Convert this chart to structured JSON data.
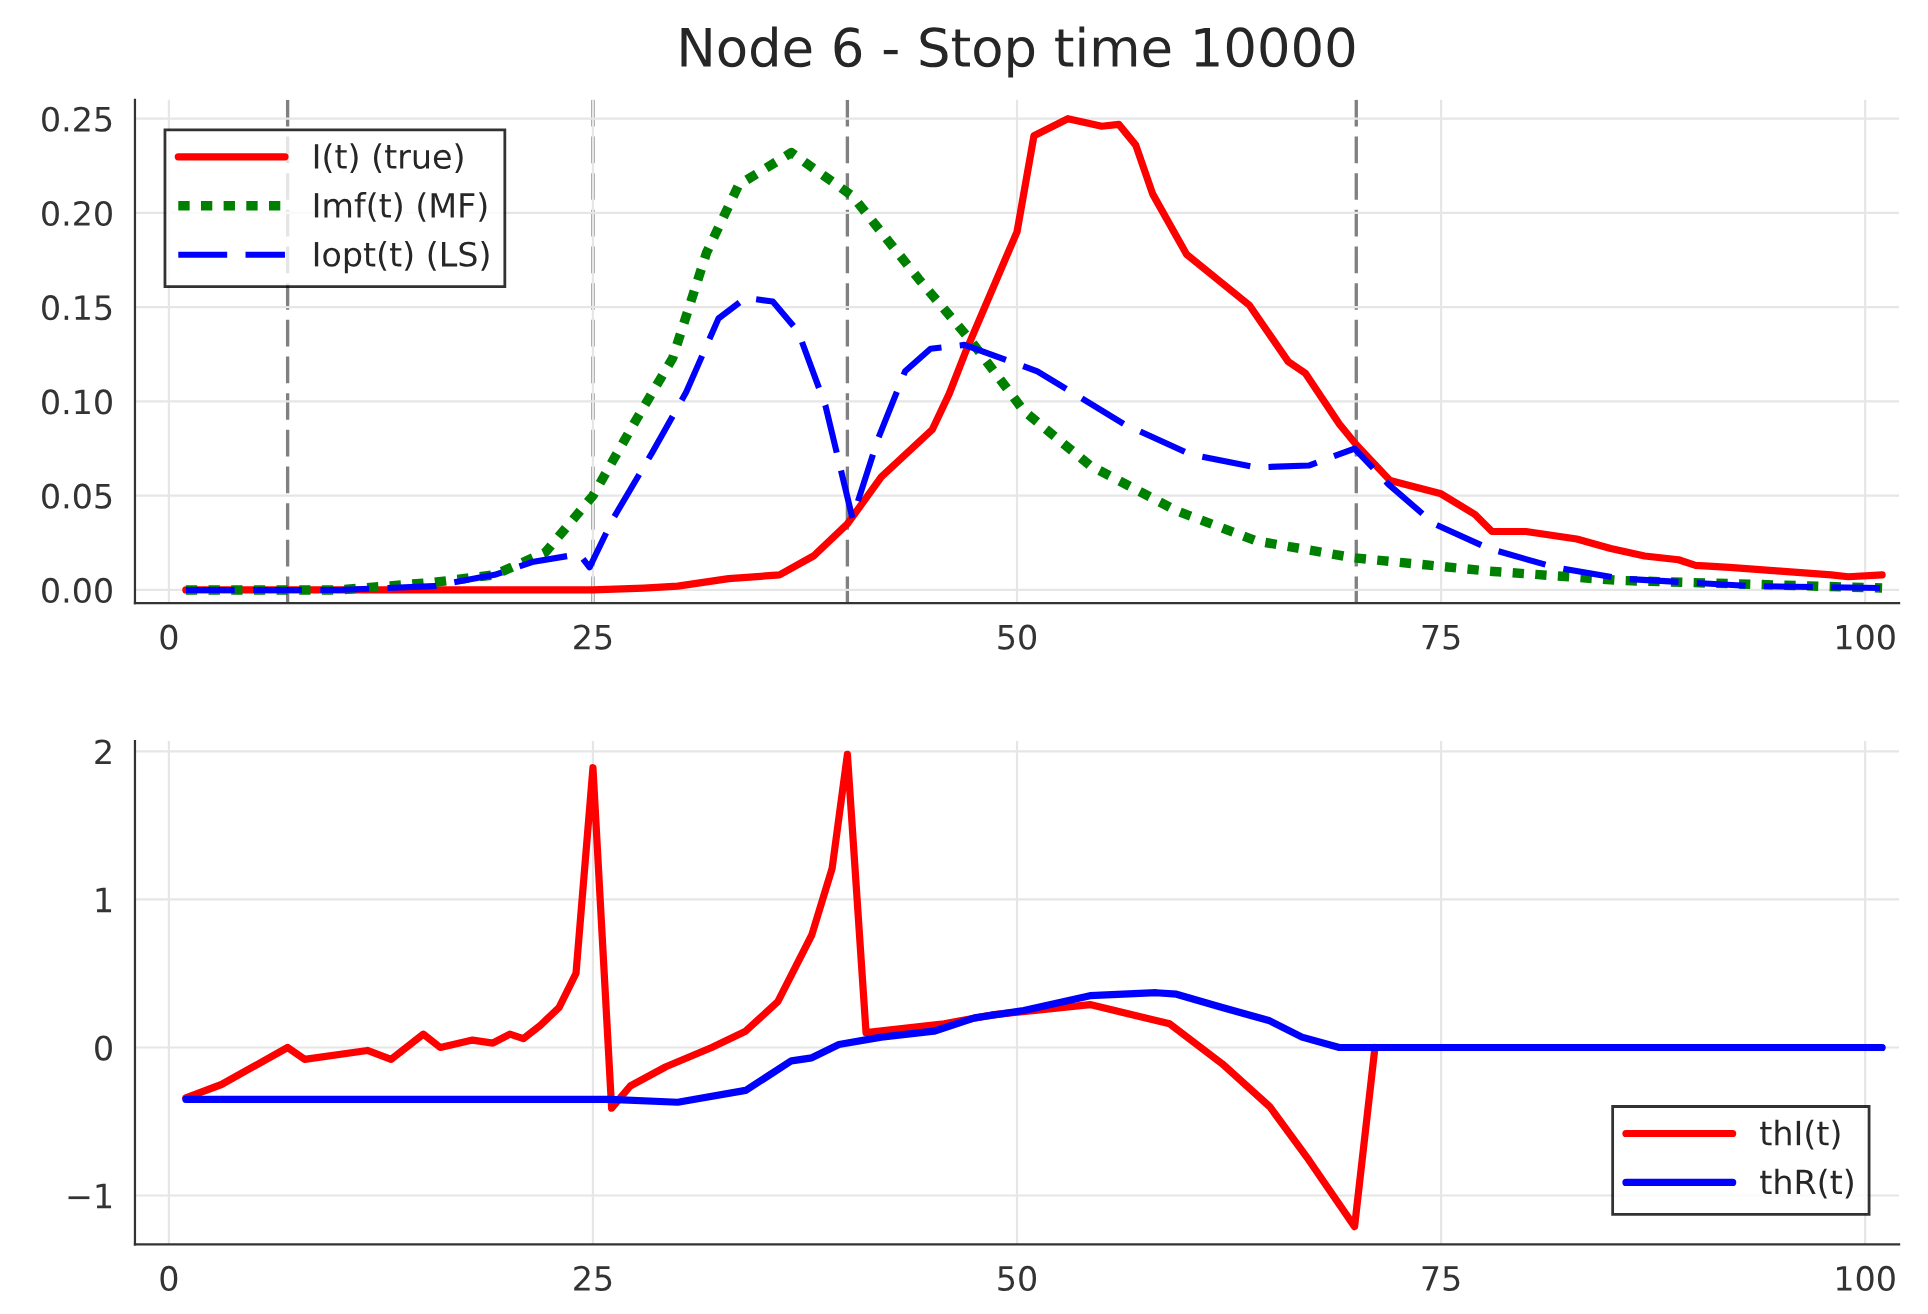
{
  "chart_data": [
    {
      "type": "line",
      "title": "Node 6 - Stop time 10000",
      "xlim": [
        -2,
        102
      ],
      "ylim": [
        -0.007,
        0.26
      ],
      "xticks": [
        0,
        25,
        50,
        75,
        100
      ],
      "yticks": [
        {
          "value": 0,
          "label": "0.00"
        },
        {
          "value": 0.05,
          "label": "0.05"
        },
        {
          "value": 0.1,
          "label": "0.10"
        },
        {
          "value": 0.15,
          "label": "0.15"
        },
        {
          "value": 0.2,
          "label": "0.20"
        },
        {
          "value": 0.25,
          "label": "0.25"
        }
      ],
      "grid": true,
      "legend": "top left",
      "marker": "none",
      "ref_lines": [
        {
          "axis": "x",
          "value": 7,
          "label": null,
          "color": "#808080",
          "line_style": "dashed"
        },
        {
          "axis": "x",
          "value": 25,
          "label": null,
          "color": "#808080",
          "line_style": "dashed"
        },
        {
          "axis": "x",
          "value": 40,
          "label": null,
          "color": "#808080",
          "line_style": "dashed"
        },
        {
          "axis": "x",
          "value": 70,
          "label": null,
          "color": "#808080",
          "line_style": "dashed"
        }
      ],
      "series": [
        {
          "name": "I(t) (true)",
          "color": "#ff0000",
          "line_style": "solid",
          "x": [
            1,
            10,
            20,
            25,
            28,
            30,
            33,
            36,
            38,
            40,
            42,
            45,
            46,
            47,
            50,
            51,
            53,
            55,
            56,
            57,
            58,
            60,
            63.7,
            66,
            67,
            69,
            70,
            72,
            75,
            77,
            78,
            80,
            83,
            85,
            87,
            89,
            90,
            92,
            95,
            98,
            99,
            101
          ],
          "values": [
            0,
            0,
            0,
            0,
            0.001,
            0.002,
            0.006,
            0.008,
            0.018,
            0.035,
            0.06,
            0.085,
            0.104,
            0.127,
            0.19,
            0.241,
            0.25,
            0.246,
            0.247,
            0.236,
            0.21,
            0.178,
            0.151,
            0.121,
            0.115,
            0.088,
            0.077,
            0.058,
            0.051,
            0.04,
            0.031,
            0.031,
            0.027,
            0.022,
            0.018,
            0.016,
            0.013,
            0.012,
            0.01,
            0.008,
            0.007,
            0.008
          ]
        },
        {
          "name": "Imf(t) (MF)",
          "color": "#008000",
          "line_style": "dotted",
          "x": [
            1,
            10,
            15.6,
            19.2,
            22.2,
            25,
            27.4,
            29.7,
            31.7,
            33.6,
            36.7,
            40.3,
            44.2,
            47.3,
            50.4,
            54.3,
            59.4,
            64.1,
            69.9,
            77.8,
            85.6,
            101
          ],
          "values": [
            0,
            0,
            0.004,
            0.008,
            0.02,
            0.05,
            0.088,
            0.123,
            0.179,
            0.215,
            0.232,
            0.209,
            0.165,
            0.132,
            0.095,
            0.066,
            0.042,
            0.026,
            0.017,
            0.01,
            0.005,
            0.001
          ]
        },
        {
          "name": "Iopt(t) (LS)",
          "color": "#0000ff",
          "line_style": "dashed",
          "x": [
            1,
            10,
            15.6,
            19.2,
            21.5,
            24.2,
            24.8,
            26.2,
            28.5,
            30.5,
            32.4,
            34,
            35.6,
            37.1,
            38.7,
            40.3,
            41.8,
            43.4,
            44.9,
            46.9,
            51.2,
            56.3,
            60.2,
            64.1,
            67.2,
            69.9,
            71.9,
            74.6,
            77.8,
            81.7,
            85.6,
            93.4,
            101
          ],
          "values": [
            0,
            0,
            0.002,
            0.008,
            0.015,
            0.019,
            0.012,
            0.038,
            0.073,
            0.105,
            0.144,
            0.155,
            0.153,
            0.137,
            0.098,
            0.038,
            0.08,
            0.116,
            0.128,
            0.13,
            0.116,
            0.088,
            0.072,
            0.065,
            0.066,
            0.075,
            0.056,
            0.035,
            0.022,
            0.012,
            0.006,
            0.002,
            0.001
          ]
        }
      ]
    },
    {
      "type": "line",
      "xlim": [
        -2,
        102
      ],
      "ylim": [
        -1.33,
        2.07
      ],
      "xticks": [
        0,
        25,
        50,
        75,
        100
      ],
      "yticks": [
        {
          "value": -1,
          "label": "−1"
        },
        0,
        1,
        2
      ],
      "grid": true,
      "legend": "bottom right",
      "marker": "none",
      "series": [
        {
          "name": "thI(t)",
          "color": "#ff0000",
          "line_style": "solid",
          "x": [
            1,
            3.1,
            7,
            8,
            11.7,
            13.1,
            15,
            16,
            17.9,
            19.1,
            20.1,
            20.9,
            21.9,
            23,
            24,
            25,
            26.1,
            27.2,
            29.3,
            32,
            34,
            35.9,
            37.9,
            39.1,
            40,
            41.1,
            45.7,
            48.5,
            54.3,
            59,
            62.1,
            64.9,
            67.2,
            69.9,
            71.1
          ],
          "values": [
            -0.34,
            -0.25,
            0.0,
            -0.08,
            -0.02,
            -0.08,
            0.09,
            0.0,
            0.05,
            0.03,
            0.09,
            0.06,
            0.15,
            0.27,
            0.5,
            1.89,
            -0.41,
            -0.26,
            -0.13,
            0.0,
            0.11,
            0.31,
            0.76,
            1.21,
            1.98,
            0.1,
            0.16,
            0.22,
            0.29,
            0.16,
            -0.11,
            -0.4,
            -0.76,
            -1.21,
            0
          ]
        },
        {
          "name": "thR(t)",
          "color": "#0000ff",
          "line_style": "solid",
          "x": [
            1,
            10,
            20,
            26,
            30,
            34,
            36.7,
            37.9,
            39.5,
            42,
            45.1,
            47.5,
            50.4,
            54.3,
            58.2,
            59.4,
            62.1,
            64.9,
            66.8,
            69,
            80,
            90,
            101
          ],
          "values": [
            -0.35,
            -0.35,
            -0.35,
            -0.35,
            -0.37,
            -0.29,
            -0.09,
            -0.07,
            0.02,
            0.07,
            0.11,
            0.2,
            0.25,
            0.35,
            0.37,
            0.36,
            0.27,
            0.18,
            0.07,
            0.0,
            0.0,
            0.0,
            0.0
          ]
        }
      ]
    }
  ]
}
